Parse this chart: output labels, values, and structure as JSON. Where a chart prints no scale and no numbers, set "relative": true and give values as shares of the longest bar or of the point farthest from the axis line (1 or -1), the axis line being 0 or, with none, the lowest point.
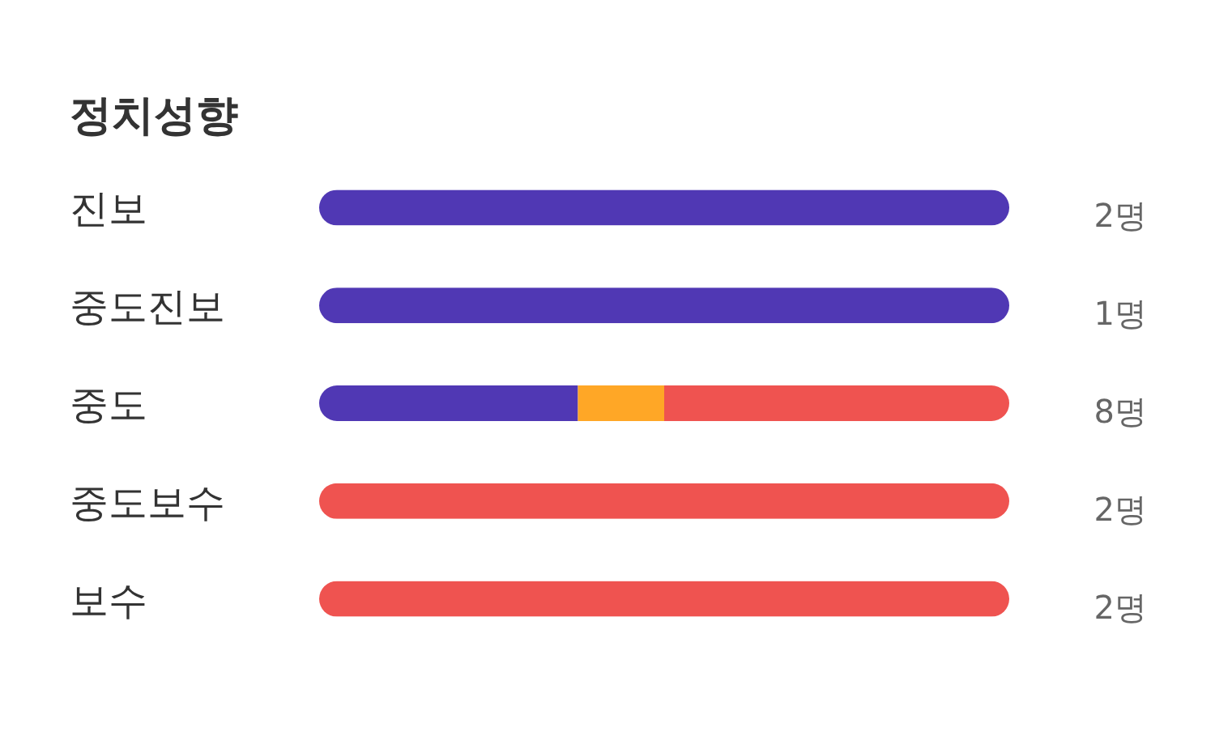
{
  "chart_data": {
    "type": "bar",
    "orientation": "horizontal",
    "stacked": true,
    "relative": true,
    "title": "정치성향",
    "categories": [
      "진보",
      "중도진보",
      "중도",
      "중도보수",
      "보수"
    ],
    "series": [
      {
        "color": "#5038b4",
        "values": [
          1,
          1,
          0.375,
          null,
          null
        ]
      },
      {
        "color": "#ffa726",
        "values": [
          null,
          null,
          0.125,
          null,
          null
        ]
      },
      {
        "color": "#ef5350",
        "values": [
          null,
          null,
          0.5,
          1,
          1
        ]
      }
    ],
    "annotations": [
      "2명",
      "1명",
      "8명",
      "2명",
      "2명"
    ]
  }
}
